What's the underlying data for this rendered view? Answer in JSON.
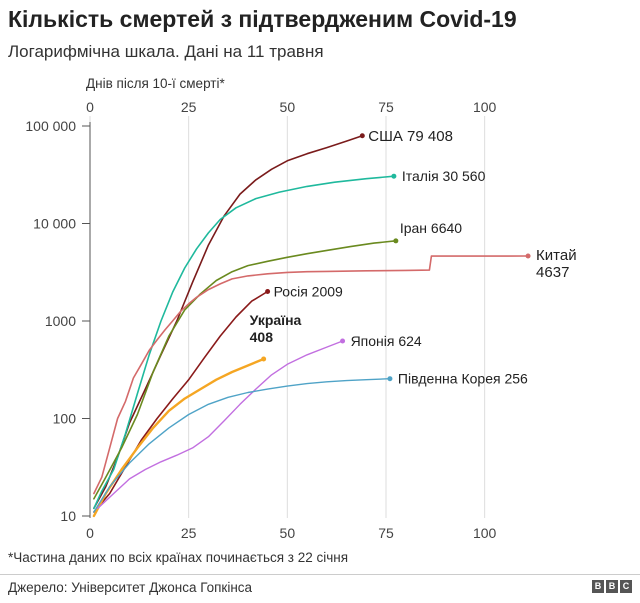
{
  "title": "Кількість смертей з підтвердженим Covid-19",
  "subtitle": "Логарифмічна шкала. Дані на 11 травня",
  "footnote": "*Частина даних по всіх країнах починається з 22 січня",
  "source": "Джерело: Університет Джонса Гопкінса",
  "logo_letters": [
    "B",
    "B",
    "C"
  ],
  "chart_data": {
    "type": "line",
    "xlabel": "Днів після 10-ї смерті*",
    "xlim": [
      0,
      112
    ],
    "ylim": [
      10,
      100000
    ],
    "yscale": "log",
    "x_ticks": [
      0,
      25,
      50,
      75,
      100
    ],
    "x_tick_labels": [
      "0",
      "25",
      "50",
      "75",
      "100"
    ],
    "y_ticks": [
      10,
      100,
      1000,
      10000,
      100000
    ],
    "y_tick_labels": [
      "10",
      "100",
      "1000",
      "10 000",
      "100 000"
    ],
    "grid": true,
    "series": [
      {
        "name": "США",
        "label_value": "79 408",
        "color": "#7a1b1b",
        "width": 1.6,
        "points": [
          [
            1,
            12
          ],
          [
            4,
            20
          ],
          [
            7,
            40
          ],
          [
            10,
            90
          ],
          [
            14,
            200
          ],
          [
            18,
            450
          ],
          [
            22,
            1000
          ],
          [
            26,
            2500
          ],
          [
            30,
            6000
          ],
          [
            34,
            12000
          ],
          [
            38,
            20000
          ],
          [
            42,
            28000
          ],
          [
            46,
            36000
          ],
          [
            50,
            44000
          ],
          [
            55,
            52000
          ],
          [
            60,
            60000
          ],
          [
            65,
            70000
          ],
          [
            69,
            79408
          ]
        ]
      },
      {
        "name": "Італія",
        "label_value": "30 560",
        "color": "#1fb99d",
        "width": 1.6,
        "points": [
          [
            1,
            12
          ],
          [
            3,
            18
          ],
          [
            6,
            30
          ],
          [
            9,
            70
          ],
          [
            12,
            180
          ],
          [
            15,
            450
          ],
          [
            18,
            1000
          ],
          [
            21,
            2000
          ],
          [
            24,
            3500
          ],
          [
            27,
            5500
          ],
          [
            30,
            8000
          ],
          [
            33,
            11000
          ],
          [
            37,
            14500
          ],
          [
            42,
            18000
          ],
          [
            48,
            21000
          ],
          [
            55,
            24000
          ],
          [
            62,
            26500
          ],
          [
            70,
            28800
          ],
          [
            77,
            30560
          ]
        ]
      },
      {
        "name": "Іран",
        "label_value": "6640",
        "color": "#6a8a1f",
        "width": 1.6,
        "points": [
          [
            1,
            15
          ],
          [
            4,
            25
          ],
          [
            8,
            50
          ],
          [
            12,
            110
          ],
          [
            16,
            300
          ],
          [
            20,
            700
          ],
          [
            24,
            1300
          ],
          [
            28,
            1900
          ],
          [
            32,
            2600
          ],
          [
            36,
            3200
          ],
          [
            40,
            3700
          ],
          [
            45,
            4100
          ],
          [
            50,
            4500
          ],
          [
            55,
            4900
          ],
          [
            60,
            5300
          ],
          [
            66,
            5800
          ],
          [
            72,
            6300
          ],
          [
            77.5,
            6640
          ]
        ]
      },
      {
        "name": "Китай",
        "label_value": "4637",
        "color": "#d46a6a",
        "width": 1.6,
        "points": [
          [
            1,
            17
          ],
          [
            3,
            25
          ],
          [
            5,
            50
          ],
          [
            7,
            100
          ],
          [
            9,
            150
          ],
          [
            11,
            260
          ],
          [
            13,
            360
          ],
          [
            15,
            500
          ],
          [
            17,
            640
          ],
          [
            19,
            810
          ],
          [
            21,
            1010
          ],
          [
            23,
            1260
          ],
          [
            25,
            1500
          ],
          [
            27,
            1750
          ],
          [
            30,
            2100
          ],
          [
            33,
            2400
          ],
          [
            36,
            2700
          ],
          [
            40,
            2900
          ],
          [
            45,
            3050
          ],
          [
            50,
            3150
          ],
          [
            55,
            3200
          ],
          [
            60,
            3230
          ],
          [
            70,
            3270
          ],
          [
            80,
            3300
          ],
          [
            86,
            3330
          ],
          [
            86.5,
            4630
          ],
          [
            96,
            4634
          ],
          [
            111,
            4637
          ]
        ]
      },
      {
        "name": "Росія",
        "label_value": "2009",
        "color": "#8a1a1a",
        "width": 1.6,
        "points": [
          [
            1,
            11
          ],
          [
            5,
            17
          ],
          [
            9,
            32
          ],
          [
            13,
            60
          ],
          [
            17,
            100
          ],
          [
            21,
            160
          ],
          [
            25,
            250
          ],
          [
            29,
            420
          ],
          [
            33,
            700
          ],
          [
            37,
            1100
          ],
          [
            41,
            1600
          ],
          [
            45,
            2009
          ]
        ]
      },
      {
        "name": "Україна",
        "label_value": "408",
        "color": "#f5a623",
        "width": 2.4,
        "bold": true,
        "points": [
          [
            1,
            10
          ],
          [
            4,
            17
          ],
          [
            8,
            30
          ],
          [
            12,
            50
          ],
          [
            16,
            80
          ],
          [
            20,
            120
          ],
          [
            24,
            160
          ],
          [
            28,
            200
          ],
          [
            32,
            250
          ],
          [
            36,
            300
          ],
          [
            40,
            350
          ],
          [
            44,
            408
          ]
        ]
      },
      {
        "name": "Японія",
        "label_value": "624",
        "color": "#c26fe0",
        "width": 1.4,
        "points": [
          [
            2,
            12
          ],
          [
            6,
            17
          ],
          [
            10,
            24
          ],
          [
            14,
            30
          ],
          [
            18,
            36
          ],
          [
            22,
            42
          ],
          [
            26,
            50
          ],
          [
            30,
            65
          ],
          [
            34,
            95
          ],
          [
            38,
            140
          ],
          [
            42,
            200
          ],
          [
            46,
            280
          ],
          [
            50,
            360
          ],
          [
            55,
            450
          ],
          [
            60,
            540
          ],
          [
            64,
            624
          ]
        ]
      },
      {
        "name": "Південна Корея",
        "label_value": "256",
        "color": "#4fa3c7",
        "width": 1.4,
        "points": [
          [
            1,
            11
          ],
          [
            5,
            20
          ],
          [
            10,
            35
          ],
          [
            15,
            55
          ],
          [
            20,
            80
          ],
          [
            25,
            110
          ],
          [
            30,
            140
          ],
          [
            35,
            165
          ],
          [
            40,
            185
          ],
          [
            45,
            200
          ],
          [
            50,
            215
          ],
          [
            55,
            228
          ],
          [
            60,
            238
          ],
          [
            65,
            245
          ],
          [
            70,
            250
          ],
          [
            76,
            256
          ]
        ]
      }
    ]
  }
}
